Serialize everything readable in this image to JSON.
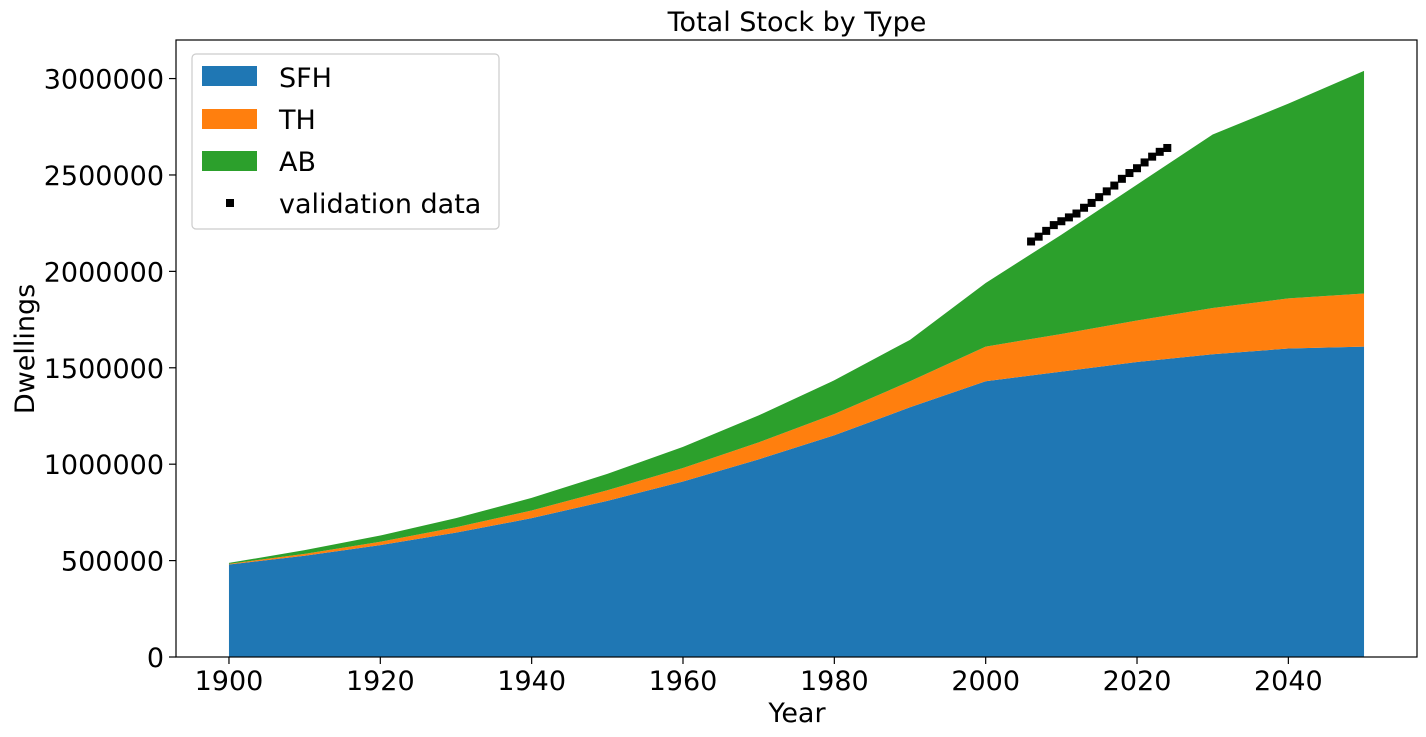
{
  "chart_data": {
    "type": "area",
    "stacked": true,
    "title": "Total Stock by Type",
    "xlabel": "Year",
    "ylabel": "Dwellings",
    "xlim": [
      1893,
      2057
    ],
    "ylim": [
      0,
      3200000
    ],
    "x_ticks": [
      1900,
      1920,
      1940,
      1960,
      1980,
      2000,
      2020,
      2040
    ],
    "y_ticks": [
      0,
      500000,
      1000000,
      1500000,
      2000000,
      2500000,
      3000000
    ],
    "x_tick_labels": [
      "1900",
      "1920",
      "1940",
      "1960",
      "1980",
      "2000",
      "2020",
      "2040"
    ],
    "y_tick_labels": [
      "0",
      "500000",
      "1000000",
      "1500000",
      "2000000",
      "2500000",
      "3000000"
    ],
    "grid": false,
    "legend_position": "upper-left",
    "x": [
      1900,
      1910,
      1920,
      1930,
      1940,
      1950,
      1960,
      1970,
      1980,
      1990,
      2000,
      2010,
      2020,
      2030,
      2040,
      2050
    ],
    "series": [
      {
        "name": "SFH",
        "color": "#1f77b4",
        "values": [
          480000,
          525000,
          580000,
          645000,
          720000,
          810000,
          910000,
          1025000,
          1150000,
          1295000,
          1430000,
          1480000,
          1530000,
          1570000,
          1600000,
          1610000
        ]
      },
      {
        "name": "TH",
        "color": "#ff7f0e",
        "values": [
          3000,
          10000,
          18000,
          28000,
          40000,
          55000,
          70000,
          88000,
          110000,
          135000,
          180000,
          195000,
          215000,
          240000,
          260000,
          275000
        ]
      },
      {
        "name": "AB",
        "color": "#2ca02c",
        "values": [
          5000,
          19000,
          32000,
          47000,
          65000,
          85000,
          110000,
          140000,
          175000,
          215000,
          330000,
          515000,
          705000,
          900000,
          1010000,
          1155000
        ]
      }
    ],
    "validation": {
      "name": "validation data",
      "color": "#000000",
      "marker": "square",
      "x": [
        2006,
        2007,
        2008,
        2009,
        2010,
        2011,
        2012,
        2013,
        2014,
        2015,
        2016,
        2017,
        2018,
        2019,
        2020,
        2021,
        2022,
        2023,
        2024
      ],
      "y": [
        2155000,
        2180000,
        2210000,
        2240000,
        2260000,
        2280000,
        2300000,
        2330000,
        2355000,
        2385000,
        2415000,
        2445000,
        2480000,
        2510000,
        2535000,
        2565000,
        2595000,
        2620000,
        2640000
      ]
    }
  }
}
